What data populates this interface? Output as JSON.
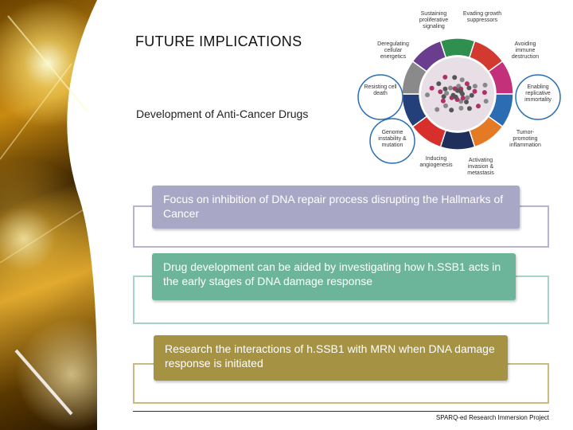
{
  "header": {
    "title": "FUTURE IMPLICATIONS",
    "subtitle": "Development of Anti-Cancer Drugs"
  },
  "hallmarks": [
    "Sustaining proliferative signaling",
    "Evading growth suppressors",
    "Avoiding immune destruction",
    "Enabling replicative immortality",
    "Tumor-promoting inflammation",
    "Activating invasion & metastasis",
    "Inducing angiogenesis",
    "Genome instability & mutation",
    "Resisting cell death",
    "Deregulating cellular energetics"
  ],
  "points": [
    "Focus on inhibition of DNA repair process disrupting the Hallmarks of Cancer",
    "Drug development can be aided by investigating how h.SSB1 acts in the early stages of DNA damage response",
    "Research the interactions of h.SSB1 with MRN when DNA damage response is initiated"
  ],
  "footer": "SPARQ-ed Research Immersion Project"
}
